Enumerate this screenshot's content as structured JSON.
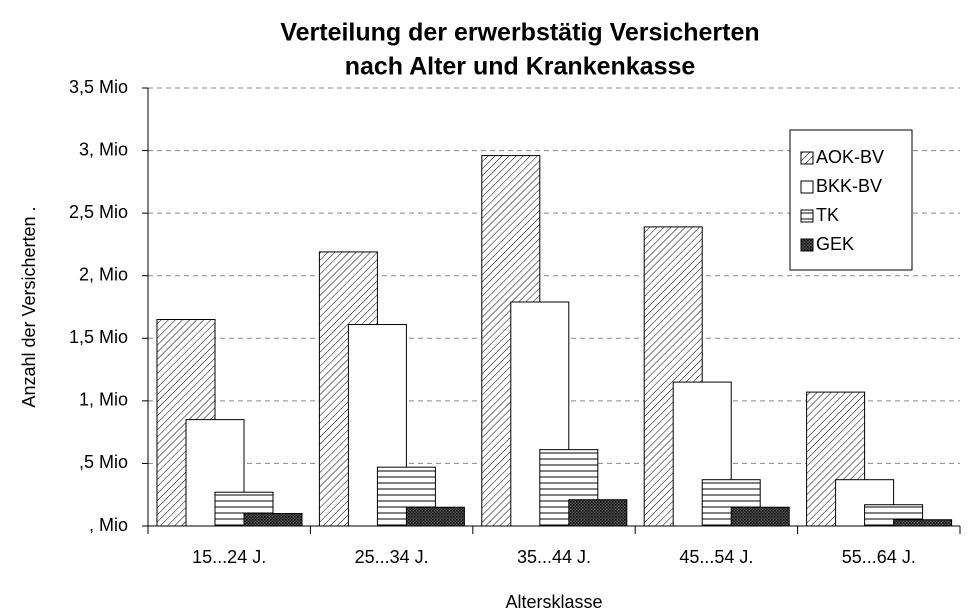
{
  "chart_data": {
    "type": "bar",
    "title": [
      "Verteilung der erwerbstätig Versicherten",
      "nach Alter und Krankenkasse"
    ],
    "x_label": "Altersklasse",
    "y_label": "Anzahl der Versicherten   .",
    "categories": [
      "15...24 J.",
      "25...34 J.",
      "35...44 J.",
      "45...54 J.",
      "55...64 J."
    ],
    "series": [
      {
        "name": "AOK-BV",
        "pattern": "diagonal",
        "color": "#000000",
        "values": [
          1.65,
          2.19,
          2.96,
          2.39,
          1.07
        ]
      },
      {
        "name": "BKK-BV",
        "pattern": "solid",
        "color": "#ffffff",
        "values": [
          0.85,
          1.61,
          1.79,
          1.15,
          0.37
        ]
      },
      {
        "name": "TK",
        "pattern": "horizontal",
        "color": "#000000",
        "values": [
          0.27,
          0.47,
          0.61,
          0.37,
          0.17
        ]
      },
      {
        "name": "GEK",
        "pattern": "dense",
        "color": "#000000",
        "values": [
          0.1,
          0.15,
          0.21,
          0.15,
          0.05
        ]
      }
    ],
    "ylim": [
      0,
      3.5
    ],
    "yticks": [
      {
        "value": 0,
        "label": ", Mio"
      },
      {
        "value": 0.5,
        "label": ",5 Mio"
      },
      {
        "value": 1,
        "label": "1, Mio"
      },
      {
        "value": 1.5,
        "label": "1,5 Mio"
      },
      {
        "value": 2,
        "label": "2, Mio"
      },
      {
        "value": 2.5,
        "label": "2,5 Mio"
      },
      {
        "value": 3,
        "label": "3, Mio"
      },
      {
        "value": 3.5,
        "label": "3,5 Mio"
      }
    ],
    "grid": true,
    "legend": "upper right"
  }
}
